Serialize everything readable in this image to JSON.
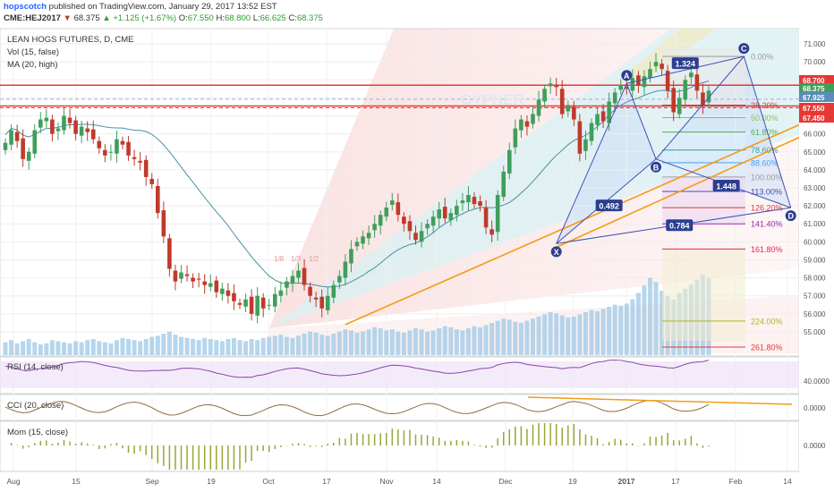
{
  "header": {
    "author": "hopscotch",
    "published_text": "published on TradingView.com, January 29, 2017 13:52 EST"
  },
  "ticker": {
    "symbol": "CME:HEJ2017",
    "direction_icon": "triangle-down-icon",
    "last": "68.375",
    "change_icon": "triangle-up-icon",
    "change": "+1.125 (+1.67%)",
    "open_label": "O:",
    "open": "67.550",
    "high_label": "H:",
    "high": "68.800",
    "low_label": "L:",
    "low": "66.625",
    "close_label": "C:",
    "close": "68.375"
  },
  "legend": {
    "title": "LEAN HOGS FUTURES, D, CME",
    "vol": "Vol (15, false)",
    "ma": "MA (20, high)"
  },
  "watermark": "CYPHER",
  "colors": {
    "up": "#3f9e5c",
    "down": "#c0392b",
    "price_line": "#e53935",
    "pattern": "#3f51b5",
    "trend": "#f39c12",
    "ma": "#4a90a4",
    "volume": "#9dc8e6"
  },
  "chart_data": [
    {
      "type": "candlestick",
      "x_tick_labels": [
        "Aug",
        "15",
        "Sep",
        "19",
        "Oct",
        "17",
        "Nov",
        "14",
        "Dec",
        "19",
        "2017",
        "17",
        "Feb",
        "14"
      ],
      "y_tick_labels": [
        "71.000",
        "70.000",
        "69.000",
        "68.000",
        "67.000",
        "66.000",
        "65.000",
        "64.000",
        "63.000",
        "62.000",
        "61.000",
        "60.000",
        "59.000",
        "58.000",
        "57.000",
        "56.000",
        "55.000"
      ],
      "ylim": [
        54.5,
        71.3
      ],
      "series": [
        {
          "name": "Close",
          "values": [
            65.5,
            66.2,
            65.6,
            64.6,
            65.0,
            66.2,
            66.8,
            66.9,
            66.0,
            66.3,
            67.0,
            66.6,
            66.0,
            66.4,
            66.1,
            65.7,
            65.2,
            64.8,
            65.0,
            65.7,
            65.4,
            64.8,
            64.6,
            64.4,
            63.6,
            63.2,
            61.6,
            60.3,
            58.5,
            57.8,
            58.3,
            58.1,
            57.8,
            57.9,
            57.6,
            57.7,
            57.2,
            57.4,
            57.0,
            56.7,
            56.5,
            56.8,
            56.0,
            57.0,
            56.3,
            56.5,
            57.1,
            57.3,
            57.8,
            58.1,
            58.4,
            57.6,
            57.0,
            56.8,
            56.3,
            57.0,
            57.6,
            58.1,
            58.9,
            59.6,
            60.0,
            60.3,
            60.5,
            61.0,
            61.5,
            61.9,
            62.3,
            61.5,
            61.0,
            60.6,
            60.1,
            60.6,
            61.0,
            61.4,
            61.8,
            61.3,
            61.6,
            62.0,
            62.3,
            62.6,
            62.1,
            62.0,
            60.8,
            60.4,
            62.6,
            63.9,
            65.1,
            66.3,
            66.8,
            66.4,
            67.1,
            67.9,
            68.5,
            68.8,
            68.6,
            67.1,
            67.6,
            66.8,
            64.9,
            65.7,
            66.6,
            67.1,
            66.7,
            67.8,
            68.3,
            68.7,
            68.5,
            69.1,
            68.7,
            69.2,
            69.6,
            70.0,
            69.6,
            68.4,
            67.2,
            68.0,
            69.0,
            69.4,
            68.4,
            67.6,
            68.4
          ]
        },
        {
          "name": "Volume",
          "values": [
            12,
            14,
            11,
            13,
            15,
            12,
            10,
            11,
            14,
            13,
            12,
            11,
            13,
            12,
            14,
            15,
            13,
            12,
            11,
            14,
            16,
            15,
            14,
            13,
            15,
            17,
            18,
            20,
            22,
            19,
            17,
            16,
            15,
            14,
            16,
            15,
            14,
            13,
            15,
            16,
            14,
            13,
            15,
            14,
            16,
            17,
            18,
            19,
            17,
            16,
            18,
            20,
            22,
            21,
            19,
            18,
            20,
            22,
            24,
            23,
            21,
            22,
            24,
            26,
            25,
            23,
            24,
            22,
            21,
            23,
            25,
            24,
            22,
            23,
            25,
            27,
            26,
            24,
            23,
            25,
            27,
            26,
            28,
            30,
            32,
            34,
            33,
            31,
            30,
            32,
            34,
            36,
            38,
            40,
            39,
            37,
            35,
            36,
            38,
            40,
            42,
            41,
            43,
            45,
            47,
            46,
            48,
            52,
            58,
            65,
            72,
            68,
            60,
            55,
            52,
            58,
            62,
            66,
            70,
            75,
            72
          ]
        }
      ]
    },
    {
      "type": "line",
      "name": "RSI (14, close)",
      "y_tick_labels": [
        "40.0000"
      ]
    },
    {
      "type": "line",
      "name": "CCI (20, close)",
      "y_tick_labels": [
        "0.0000"
      ]
    },
    {
      "type": "bar",
      "name": "Mom (15, close)",
      "y_tick_labels": [
        "0.0000"
      ]
    }
  ],
  "price_tags": [
    {
      "label": "68.700",
      "value": 68.7,
      "color": "#e53935"
    },
    {
      "label": "68.375",
      "value": 68.375,
      "color": "#3f9e5c"
    },
    {
      "label": "67.925",
      "value": 67.925,
      "color": "#5b8db8"
    },
    {
      "label": "67.550",
      "value": 67.55,
      "color": "#e53935"
    },
    {
      "label": "67.450",
      "value": 67.45,
      "color": "#e53935"
    }
  ],
  "pattern_points": [
    {
      "label": "X",
      "i": 94,
      "value": 59.9
    },
    {
      "label": "A",
      "i": 106,
      "value": 68.8
    },
    {
      "label": "B",
      "i": 111,
      "value": 64.6
    },
    {
      "label": "C",
      "i": 126,
      "value": 70.3
    },
    {
      "label": "D",
      "i": 134,
      "value": 61.9
    }
  ],
  "pattern_ratios": [
    {
      "label": "1.324",
      "i": 116,
      "value": 69.9
    },
    {
      "label": "0.492",
      "i": 103,
      "value": 62.0
    },
    {
      "label": "1.448",
      "i": 123,
      "value": 63.1
    },
    {
      "label": "0.784",
      "i": 115,
      "value": 60.9
    }
  ],
  "fib_levels": [
    {
      "label": "0.00%",
      "value": 70.3,
      "color": "#999999"
    },
    {
      "label": "38.20%",
      "value": 67.6,
      "color": "#e53935"
    },
    {
      "label": "50.00%",
      "value": 66.9,
      "color": "#8bc34a"
    },
    {
      "label": "61.80%",
      "value": 66.1,
      "color": "#4caf50"
    },
    {
      "label": "78.60%",
      "value": 65.1,
      "color": "#26a69a"
    },
    {
      "label": "88.60%",
      "value": 64.4,
      "color": "#42a5f5"
    },
    {
      "label": "100.00%",
      "value": 63.6,
      "color": "#9e9e9e"
    },
    {
      "label": "113.00%",
      "value": 62.8,
      "color": "#3f51b5"
    },
    {
      "label": "126.20%",
      "value": 61.9,
      "color": "#e53935"
    },
    {
      "label": "141.40%",
      "value": 61.0,
      "color": "#9c27b0"
    },
    {
      "label": "161.80%",
      "value": 59.6,
      "color": "#e91e63"
    },
    {
      "label": "224.00%",
      "value": 55.6,
      "color": "#afb42b"
    },
    {
      "label": "261.80%",
      "value": 53.0,
      "color": "#e53935"
    }
  ],
  "fan_labels": [
    "1/8",
    "1/3",
    "1/2"
  ]
}
